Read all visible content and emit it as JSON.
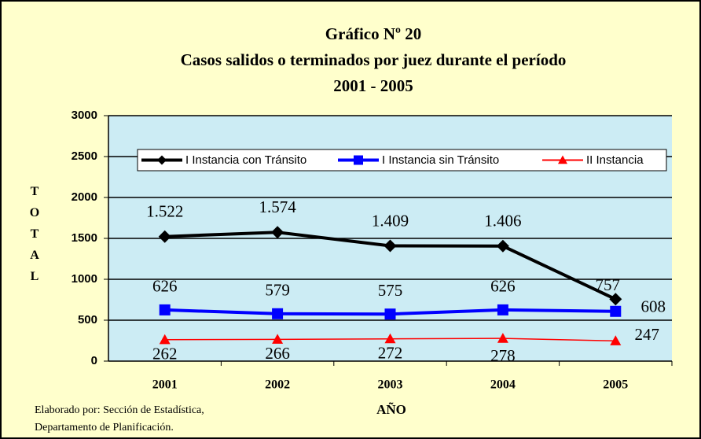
{
  "chart_data": {
    "type": "line",
    "title": [
      "Gráfico Nº 20",
      "Casos salidos o terminados por  juez  durante el período",
      "2001 - 2005"
    ],
    "y_label": "TOTAL",
    "x_label": "AÑO",
    "notes": [
      "Elaborado por: Sección de Estadística,",
      "Departamento de Planificación."
    ],
    "categories": [
      "2001",
      "2002",
      "2003",
      "2004",
      "2005"
    ],
    "series": [
      {
        "name": "I Instancia con Tránsito",
        "color": "#000000",
        "marker": "diamond",
        "values": [
          1522,
          1574,
          1409,
          1406,
          757
        ],
        "value_labels": [
          "1.522",
          "1.574",
          "1.409",
          "1.406",
          "757"
        ]
      },
      {
        "name": "I Instancia sin Tránsito",
        "color": "#0000ff",
        "marker": "square",
        "values": [
          626,
          579,
          575,
          626,
          608
        ]
      },
      {
        "name": "II Instancia",
        "color": "#ff0000",
        "marker": "triangle",
        "values": [
          262,
          266,
          272,
          278,
          247
        ]
      }
    ],
    "ylim": [
      0,
      3000
    ],
    "yticks": [
      0,
      500,
      1000,
      1500,
      2000,
      2500,
      3000
    ],
    "grid": true,
    "legend": "top"
  }
}
